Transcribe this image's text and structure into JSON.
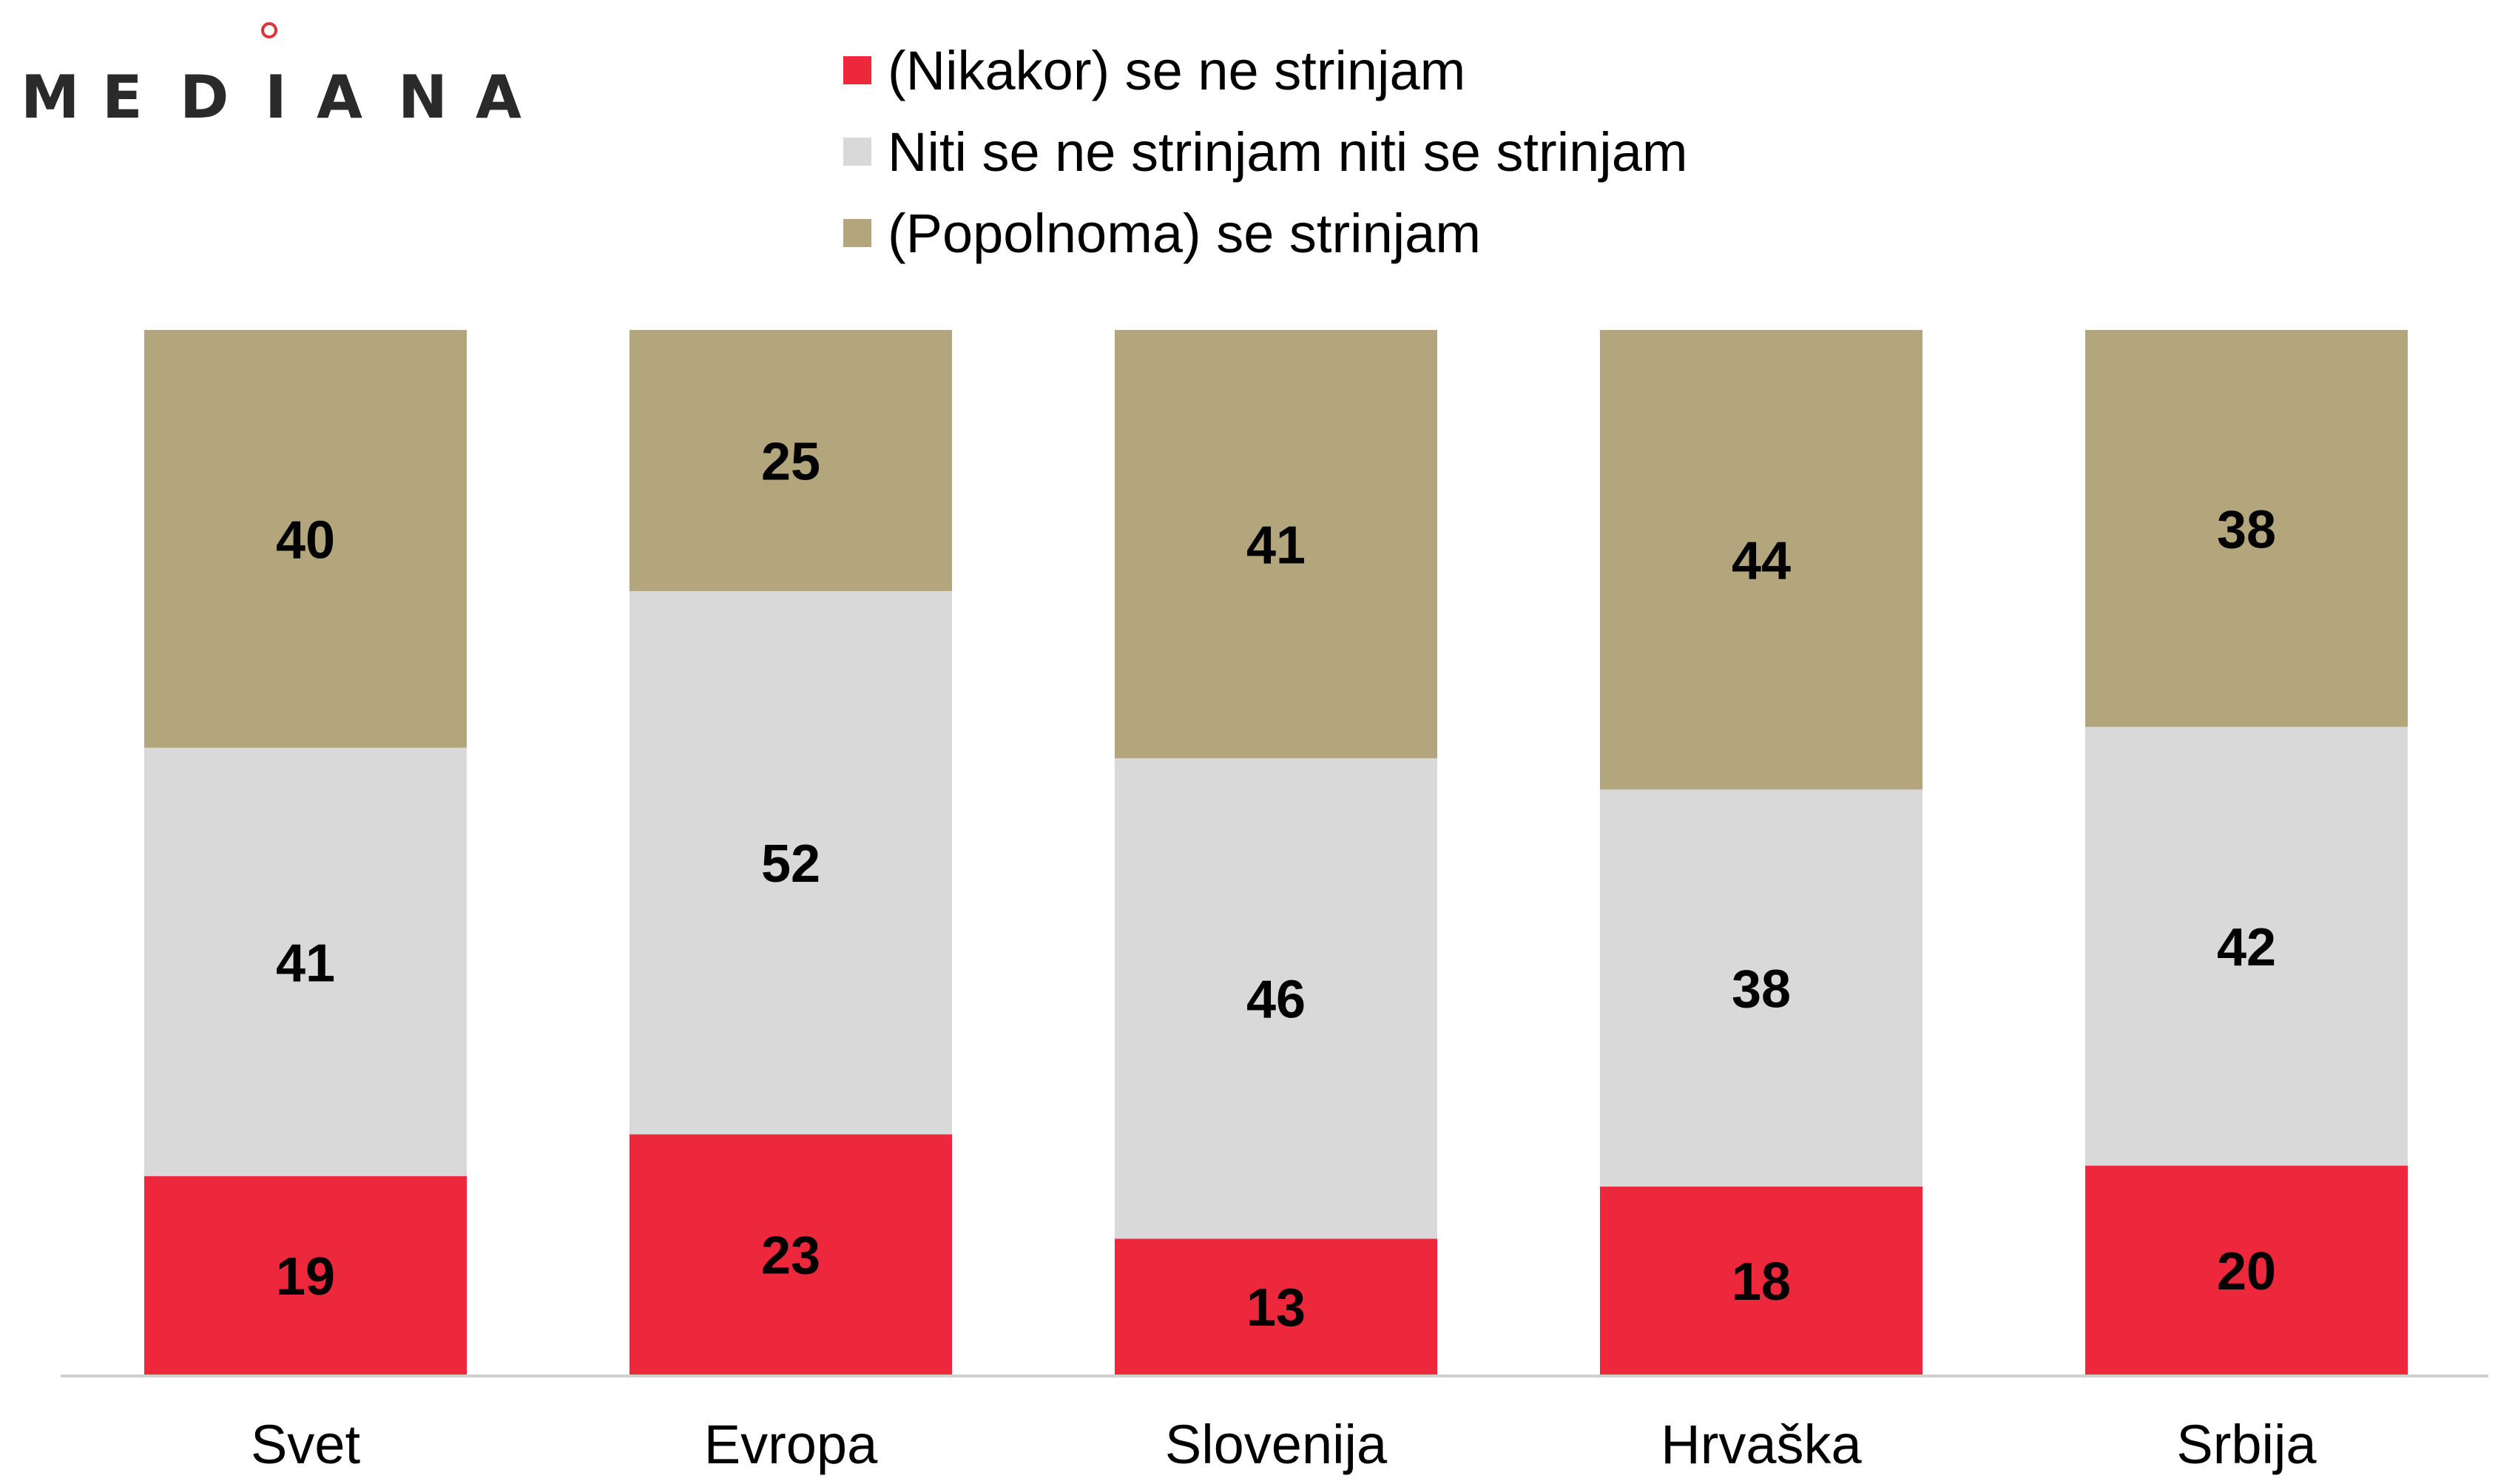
{
  "logo": {
    "letters": [
      "M",
      "E",
      "D",
      "I",
      "A",
      "N",
      "A"
    ]
  },
  "legend": {
    "items": [
      {
        "label": "(Nikakor) se ne strinjam",
        "color": "#ee283c"
      },
      {
        "label": "Niti se ne strinjam niti se strinjam",
        "color": "#d9d9d9"
      },
      {
        "label": "(Popolnoma) se strinjam",
        "color": "#b3a57c"
      }
    ]
  },
  "chart_data": {
    "type": "bar",
    "stacked": true,
    "title": "",
    "xlabel": "",
    "ylabel": "",
    "ylim": [
      0,
      100
    ],
    "grid": false,
    "legend_position": "top",
    "categories": [
      "Svet",
      "Evropa",
      "Slovenija",
      "Hrvaška",
      "Srbija"
    ],
    "series": [
      {
        "name": "(Nikakor) se ne strinjam",
        "color": "#ee283c",
        "values": [
          19,
          23,
          13,
          18,
          20
        ]
      },
      {
        "name": "Niti se ne strinjam niti se strinjam",
        "color": "#d9d9d9",
        "values": [
          41,
          52,
          46,
          38,
          42
        ]
      },
      {
        "name": "(Popolnoma) se strinjam",
        "color": "#b3a57c",
        "values": [
          40,
          25,
          41,
          44,
          38
        ]
      }
    ]
  }
}
